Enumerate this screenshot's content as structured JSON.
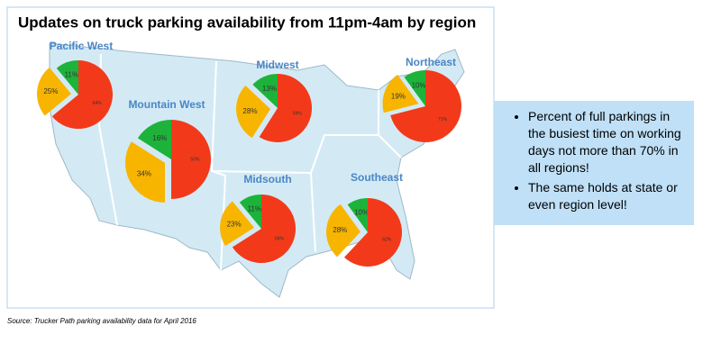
{
  "title": "Updates on truck parking availability from 11pm-4am by region",
  "source": "Source: Trucker Path parking availability data for April 2016",
  "notes": [
    "Percent of full parkings in the busiest time on working days not more than 70% in all regions!",
    "The same holds at state or even region level!"
  ],
  "chart_data": [
    {
      "type": "pie",
      "title": "Pacific West",
      "values": [
        25,
        11,
        64
      ],
      "value_labels": [
        "25%",
        "11%",
        "64%"
      ],
      "colors": [
        "#f7b500",
        "#1db33a",
        "#f23a1a"
      ]
    },
    {
      "type": "pie",
      "title": "Mountain West",
      "values": [
        34,
        16,
        50
      ],
      "value_labels": [
        "34%",
        "16%",
        "50%"
      ],
      "colors": [
        "#f7b500",
        "#1db33a",
        "#f23a1a"
      ]
    },
    {
      "type": "pie",
      "title": "Midwest",
      "values": [
        28,
        13,
        59
      ],
      "value_labels": [
        "28%",
        "13%",
        "59%"
      ],
      "colors": [
        "#f7b500",
        "#1db33a",
        "#f23a1a"
      ]
    },
    {
      "type": "pie",
      "title": "Northeast",
      "values": [
        19,
        10,
        71
      ],
      "value_labels": [
        "19%",
        "10%",
        "71%"
      ],
      "colors": [
        "#f7b500",
        "#1db33a",
        "#f23a1a"
      ]
    },
    {
      "type": "pie",
      "title": "Midsouth",
      "values": [
        23,
        11,
        66
      ],
      "value_labels": [
        "23%",
        "11%",
        "66%"
      ],
      "colors": [
        "#f7b500",
        "#1db33a",
        "#f23a1a"
      ]
    },
    {
      "type": "pie",
      "title": "Southeast",
      "values": [
        28,
        10,
        62
      ],
      "value_labels": [
        "28%",
        "10%",
        "62%"
      ],
      "colors": [
        "#f7b500",
        "#1db33a",
        "#f23a1a"
      ]
    }
  ]
}
